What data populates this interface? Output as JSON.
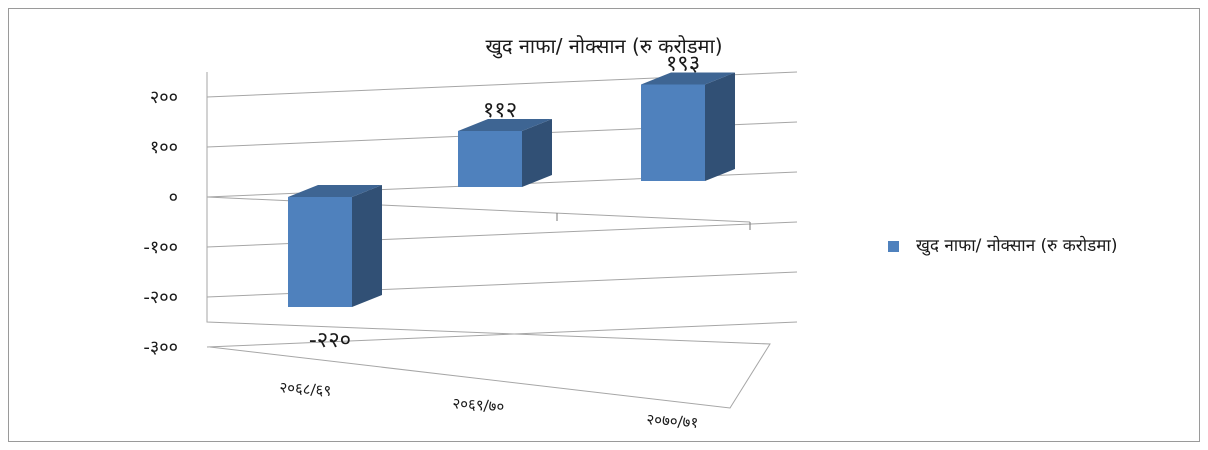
{
  "chart_data": {
    "type": "bar",
    "title": "खुद नाफा/ नोक्सान (रु करोडमा)",
    "categories": [
      "२०६८/६९",
      "२०६९/७०",
      "२०७०/७१"
    ],
    "series": [
      {
        "name": "खुद नाफा/ नोक्सान (रु करोडमा)",
        "values": [
          -220,
          112,
          193
        ],
        "value_labels": [
          "-२२०",
          "११२",
          "१९३"
        ],
        "color": "#4F81BD"
      }
    ],
    "yticks": [
      200,
      100,
      0,
      -100,
      -200,
      -300
    ],
    "ytick_labels": [
      "२००",
      "१००",
      "०",
      "-१००",
      "-२००",
      "-३००"
    ],
    "ylim": [
      -300,
      200
    ],
    "grid": true,
    "legend_position": "right",
    "three_d": true
  }
}
